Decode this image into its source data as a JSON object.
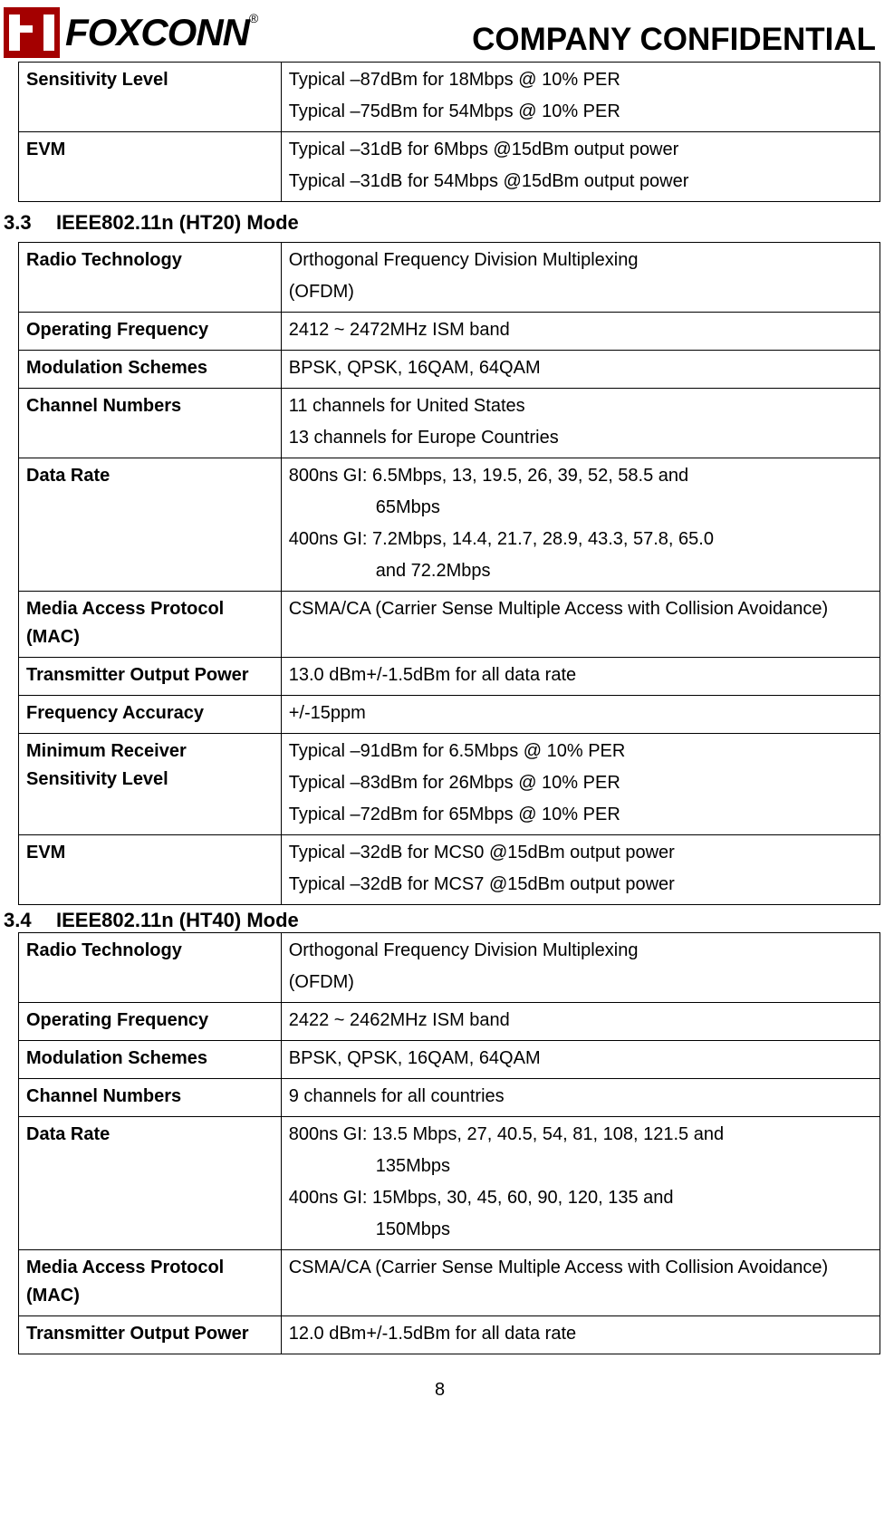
{
  "header": {
    "logo_text": "FOXCONN",
    "registered": "®",
    "confidential": "COMPANY CONFIDENTIAL"
  },
  "table1": {
    "rows": [
      {
        "label": "Sensitivity Level",
        "lines": [
          "Typical –87dBm for 18Mbps @ 10% PER",
          "Typical –75dBm for 54Mbps @ 10% PER"
        ]
      },
      {
        "label": "EVM",
        "lines": [
          "Typical –31dB for 6Mbps @15dBm output power",
          "Typical –31dB for 54Mbps @15dBm output power"
        ]
      }
    ]
  },
  "section33": {
    "num": "3.3",
    "title": "IEEE802.11n (HT20) Mode"
  },
  "table2": {
    "rows": [
      {
        "label": "Radio Technology",
        "lines": [
          "Orthogonal Frequency Division Multiplexing",
          "(OFDM)"
        ]
      },
      {
        "label": "Operating Frequency",
        "lines": [
          "2412 ~ 2472MHz ISM band"
        ]
      },
      {
        "label": "Modulation Schemes",
        "lines": [
          "BPSK, QPSK, 16QAM, 64QAM"
        ]
      },
      {
        "label": "Channel Numbers",
        "lines": [
          "11 channels for United States",
          "13 channels for Europe Countries"
        ]
      },
      {
        "label": "Data Rate",
        "lines": [
          "800ns GI: 6.5Mbps, 13, 19.5, 26, 39, 52, 58.5 and",
          "|65Mbps",
          "400ns GI: 7.2Mbps, 14.4, 21.7, 28.9, 43.3, 57.8, 65.0",
          "|and 72.2Mbps"
        ]
      },
      {
        "label": "Media Access Protocol (MAC)",
        "lines": [
          "CSMA/CA (Carrier Sense Multiple Access with Collision Avoidance)"
        ]
      },
      {
        "label": "Transmitter Output Power",
        "lines": [
          "13.0 dBm+/-1.5dBm for all data rate"
        ]
      },
      {
        "label": "Frequency Accuracy",
        "lines": [
          "+/-15ppm"
        ]
      },
      {
        "label": "Minimum Receiver Sensitivity Level",
        "lines": [
          "Typical –91dBm for 6.5Mbps @ 10% PER",
          "Typical –83dBm for 26Mbps @ 10% PER",
          "Typical –72dBm for 65Mbps @ 10% PER"
        ]
      },
      {
        "label": "EVM",
        "lines": [
          "Typical –32dB for MCS0 @15dBm output power",
          "Typical –32dB for MCS7 @15dBm output power"
        ]
      }
    ]
  },
  "section34": {
    "num": "3.4",
    "title": "IEEE802.11n (HT40) Mode"
  },
  "table3": {
    "rows": [
      {
        "label": "Radio Technology",
        "lines": [
          "Orthogonal Frequency Division Multiplexing",
          "(OFDM)"
        ]
      },
      {
        "label": "Operating Frequency",
        "lines": [
          "2422 ~ 2462MHz ISM band"
        ]
      },
      {
        "label": "Modulation Schemes",
        "lines": [
          "BPSK, QPSK, 16QAM, 64QAM"
        ]
      },
      {
        "label": "Channel Numbers",
        "lines": [
          "9 channels for all countries"
        ]
      },
      {
        "label": "Data Rate",
        "lines": [
          "800ns GI: 13.5 Mbps, 27, 40.5, 54, 81, 108, 121.5 and",
          "|135Mbps",
          "400ns GI: 15Mbps, 30, 45, 60, 90, 120, 135 and",
          "|150Mbps"
        ]
      },
      {
        "label": "Media Access Protocol (MAC)",
        "lines": [
          "CSMA/CA (Carrier Sense Multiple Access with Collision Avoidance)"
        ]
      },
      {
        "label": "Transmitter Output Power",
        "lines": [
          "12.0 dBm+/-1.5dBm for all data rate"
        ]
      }
    ]
  },
  "page_number": "8"
}
